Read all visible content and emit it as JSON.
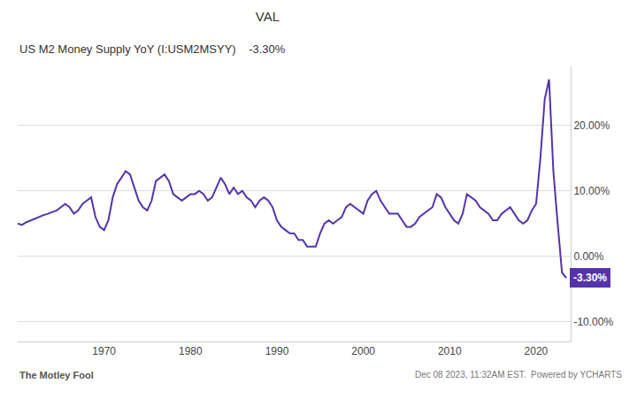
{
  "chart_data": {
    "type": "line",
    "title": "VAL",
    "subtitle": "US M2 Money Supply YoY (I:USM2MSYY)    -3.30%",
    "footer": [
      "The Motley Fool",
      "Dec 08 2023, 11:32AM EST.  Powered by YCHARTS"
    ],
    "x": [
      1960.0,
      1960.5,
      1961.0,
      1961.5,
      1962.0,
      1962.5,
      1963.0,
      1963.5,
      1964.0,
      1964.5,
      1965.0,
      1965.5,
      1966.0,
      1966.5,
      1967.0,
      1967.5,
      1968.0,
      1968.5,
      1969.0,
      1969.5,
      1970.0,
      1970.5,
      1971.0,
      1971.5,
      1972.0,
      1972.5,
      1973.0,
      1973.5,
      1974.0,
      1974.5,
      1975.0,
      1975.5,
      1976.0,
      1976.5,
      1977.0,
      1977.5,
      1978.0,
      1978.5,
      1979.0,
      1979.5,
      1980.0,
      1980.5,
      1981.0,
      1981.5,
      1982.0,
      1982.5,
      1983.0,
      1983.5,
      1984.0,
      1984.5,
      1985.0,
      1985.5,
      1986.0,
      1986.5,
      1987.0,
      1987.5,
      1988.0,
      1988.5,
      1989.0,
      1989.5,
      1990.0,
      1990.5,
      1991.0,
      1991.5,
      1992.0,
      1992.5,
      1993.0,
      1993.5,
      1994.0,
      1994.5,
      1995.0,
      1995.5,
      1996.0,
      1996.5,
      1997.0,
      1997.5,
      1998.0,
      1998.5,
      1999.0,
      1999.5,
      2000.0,
      2000.5,
      2001.0,
      2001.5,
      2002.0,
      2002.5,
      2003.0,
      2003.5,
      2004.0,
      2004.5,
      2005.0,
      2005.5,
      2006.0,
      2006.5,
      2007.0,
      2007.5,
      2008.0,
      2008.5,
      2009.0,
      2009.5,
      2010.0,
      2010.5,
      2011.0,
      2011.5,
      2012.0,
      2012.5,
      2013.0,
      2013.5,
      2014.0,
      2014.5,
      2015.0,
      2015.5,
      2016.0,
      2016.5,
      2017.0,
      2017.5,
      2018.0,
      2018.5,
      2019.0,
      2019.5,
      2020.0,
      2020.5,
      2021.0,
      2021.5,
      2022.0,
      2022.5,
      2023.0,
      2023.5
    ],
    "values": [
      5.0,
      4.8,
      5.2,
      5.5,
      5.8,
      6.0,
      6.3,
      6.5,
      6.8,
      7.0,
      7.5,
      8.0,
      7.5,
      6.5,
      7.0,
      8.0,
      8.5,
      9.0,
      6.0,
      4.5,
      4.0,
      5.5,
      9.0,
      11.0,
      12.0,
      13.0,
      12.5,
      10.5,
      8.5,
      7.5,
      7.0,
      8.5,
      11.5,
      12.0,
      12.5,
      11.5,
      9.5,
      9.0,
      8.5,
      9.0,
      9.5,
      9.5,
      10.0,
      9.5,
      8.5,
      9.0,
      10.5,
      12.0,
      11.0,
      9.5,
      10.5,
      9.5,
      10.0,
      9.0,
      8.5,
      7.5,
      8.5,
      9.0,
      8.5,
      7.5,
      5.5,
      4.5,
      4.0,
      3.5,
      3.5,
      2.5,
      2.5,
      1.5,
      1.5,
      1.5,
      3.5,
      5.0,
      5.5,
      5.0,
      5.5,
      6.0,
      7.5,
      8.0,
      7.5,
      7.0,
      6.5,
      8.5,
      9.5,
      10.0,
      8.5,
      7.5,
      6.5,
      6.5,
      6.5,
      5.5,
      4.5,
      4.5,
      5.0,
      6.0,
      6.5,
      7.0,
      7.5,
      9.5,
      9.0,
      7.5,
      6.5,
      5.5,
      5.0,
      6.5,
      9.5,
      9.0,
      8.5,
      7.5,
      7.0,
      6.5,
      5.5,
      5.5,
      6.5,
      7.0,
      7.5,
      6.5,
      5.5,
      5.0,
      5.5,
      7.0,
      8.0,
      15.0,
      24.0,
      27.0,
      13.0,
      5.0,
      -2.5,
      -3.3
    ],
    "color": "#5533aa",
    "xlim": [
      1960,
      2024
    ],
    "xticks": [
      1970,
      1980,
      1990,
      2000,
      2010,
      2020
    ],
    "ylim": [
      -13,
      29
    ],
    "yticks": [
      {
        "value": -10,
        "label": "-10.00%"
      },
      {
        "value": 0,
        "label": "0.00%"
      },
      {
        "value": 10,
        "label": "10.00%"
      },
      {
        "value": 20,
        "label": "20.00%"
      }
    ],
    "grid": "y",
    "annotations": [
      {
        "x": 2023.5,
        "y": -3.3,
        "text": "-3.30%"
      }
    ]
  }
}
